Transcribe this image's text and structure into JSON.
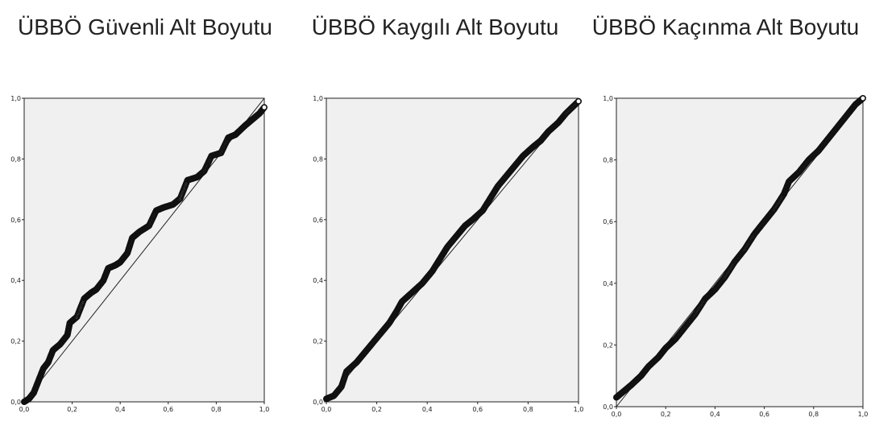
{
  "chart_data": [
    {
      "type": "scatter",
      "title": "ÜBBÖ Güvenli Alt Boyutu",
      "xlabel": "",
      "ylabel": "",
      "xlim": [
        0,
        1
      ],
      "ylim": [
        0,
        1
      ],
      "xticks": [
        "0,0",
        "0,2",
        "0,4",
        "0,6",
        "0,8",
        "1,0"
      ],
      "yticks": [
        "0,0",
        "0,2",
        "0,4",
        "0,6",
        "0,8",
        "1,0"
      ],
      "reference_line": [
        [
          0,
          0
        ],
        [
          1,
          1
        ]
      ],
      "points": [
        [
          0.0,
          0.0
        ],
        [
          0.02,
          0.01
        ],
        [
          0.04,
          0.03
        ],
        [
          0.06,
          0.07
        ],
        [
          0.08,
          0.11
        ],
        [
          0.1,
          0.13
        ],
        [
          0.12,
          0.17
        ],
        [
          0.15,
          0.19
        ],
        [
          0.18,
          0.22
        ],
        [
          0.19,
          0.26
        ],
        [
          0.22,
          0.28
        ],
        [
          0.25,
          0.34
        ],
        [
          0.28,
          0.36
        ],
        [
          0.3,
          0.37
        ],
        [
          0.33,
          0.4
        ],
        [
          0.35,
          0.44
        ],
        [
          0.38,
          0.45
        ],
        [
          0.4,
          0.46
        ],
        [
          0.43,
          0.49
        ],
        [
          0.45,
          0.54
        ],
        [
          0.48,
          0.56
        ],
        [
          0.52,
          0.58
        ],
        [
          0.55,
          0.63
        ],
        [
          0.58,
          0.64
        ],
        [
          0.62,
          0.65
        ],
        [
          0.65,
          0.67
        ],
        [
          0.68,
          0.73
        ],
        [
          0.72,
          0.74
        ],
        [
          0.75,
          0.76
        ],
        [
          0.78,
          0.81
        ],
        [
          0.82,
          0.82
        ],
        [
          0.85,
          0.87
        ],
        [
          0.88,
          0.88
        ],
        [
          0.92,
          0.91
        ],
        [
          0.95,
          0.93
        ],
        [
          0.98,
          0.95
        ],
        [
          1.0,
          0.97
        ]
      ]
    },
    {
      "type": "scatter",
      "title": "ÜBBÖ Kaygılı Alt Boyutu",
      "xlabel": "",
      "ylabel": "",
      "xlim": [
        0,
        1
      ],
      "ylim": [
        0,
        1
      ],
      "xticks": [
        "0,0",
        "0,2",
        "0,4",
        "0,6",
        "0,8",
        "1,0"
      ],
      "yticks": [
        "0,0",
        "0,2",
        "0,4",
        "0,6",
        "0,8",
        "1,0"
      ],
      "reference_line": [
        [
          0,
          0
        ],
        [
          1,
          1
        ]
      ],
      "points": [
        [
          0.0,
          0.01
        ],
        [
          0.03,
          0.02
        ],
        [
          0.06,
          0.05
        ],
        [
          0.08,
          0.1
        ],
        [
          0.12,
          0.13
        ],
        [
          0.15,
          0.16
        ],
        [
          0.18,
          0.19
        ],
        [
          0.22,
          0.23
        ],
        [
          0.25,
          0.26
        ],
        [
          0.28,
          0.3
        ],
        [
          0.3,
          0.33
        ],
        [
          0.34,
          0.36
        ],
        [
          0.38,
          0.39
        ],
        [
          0.42,
          0.43
        ],
        [
          0.45,
          0.47
        ],
        [
          0.48,
          0.51
        ],
        [
          0.52,
          0.55
        ],
        [
          0.55,
          0.58
        ],
        [
          0.58,
          0.6
        ],
        [
          0.62,
          0.63
        ],
        [
          0.65,
          0.67
        ],
        [
          0.68,
          0.71
        ],
        [
          0.72,
          0.75
        ],
        [
          0.75,
          0.78
        ],
        [
          0.78,
          0.81
        ],
        [
          0.82,
          0.84
        ],
        [
          0.85,
          0.86
        ],
        [
          0.88,
          0.89
        ],
        [
          0.92,
          0.92
        ],
        [
          0.95,
          0.95
        ],
        [
          1.0,
          0.99
        ]
      ]
    },
    {
      "type": "scatter",
      "title": "ÜBBÖ Kaçınma Alt Boyutu",
      "xlabel": "",
      "ylabel": "",
      "xlim": [
        0,
        1
      ],
      "ylim": [
        0,
        1
      ],
      "xticks": [
        "0,0",
        "0,2",
        "0,4",
        "0,6",
        "0,8",
        "1,0"
      ],
      "yticks": [
        "0,0",
        "0,2",
        "0,4",
        "0,6",
        "0,8",
        "1,0"
      ],
      "reference_line": [
        [
          0,
          0
        ],
        [
          1,
          1
        ]
      ],
      "points": [
        [
          0.0,
          0.03
        ],
        [
          0.03,
          0.05
        ],
        [
          0.06,
          0.07
        ],
        [
          0.1,
          0.1
        ],
        [
          0.13,
          0.13
        ],
        [
          0.17,
          0.16
        ],
        [
          0.2,
          0.19
        ],
        [
          0.24,
          0.22
        ],
        [
          0.28,
          0.26
        ],
        [
          0.32,
          0.3
        ],
        [
          0.36,
          0.35
        ],
        [
          0.4,
          0.38
        ],
        [
          0.44,
          0.42
        ],
        [
          0.48,
          0.47
        ],
        [
          0.52,
          0.51
        ],
        [
          0.56,
          0.56
        ],
        [
          0.6,
          0.6
        ],
        [
          0.64,
          0.64
        ],
        [
          0.68,
          0.69
        ],
        [
          0.7,
          0.73
        ],
        [
          0.74,
          0.76
        ],
        [
          0.78,
          0.8
        ],
        [
          0.82,
          0.83
        ],
        [
          0.86,
          0.87
        ],
        [
          0.9,
          0.91
        ],
        [
          0.94,
          0.95
        ],
        [
          0.97,
          0.98
        ],
        [
          1.0,
          1.0
        ]
      ]
    }
  ]
}
